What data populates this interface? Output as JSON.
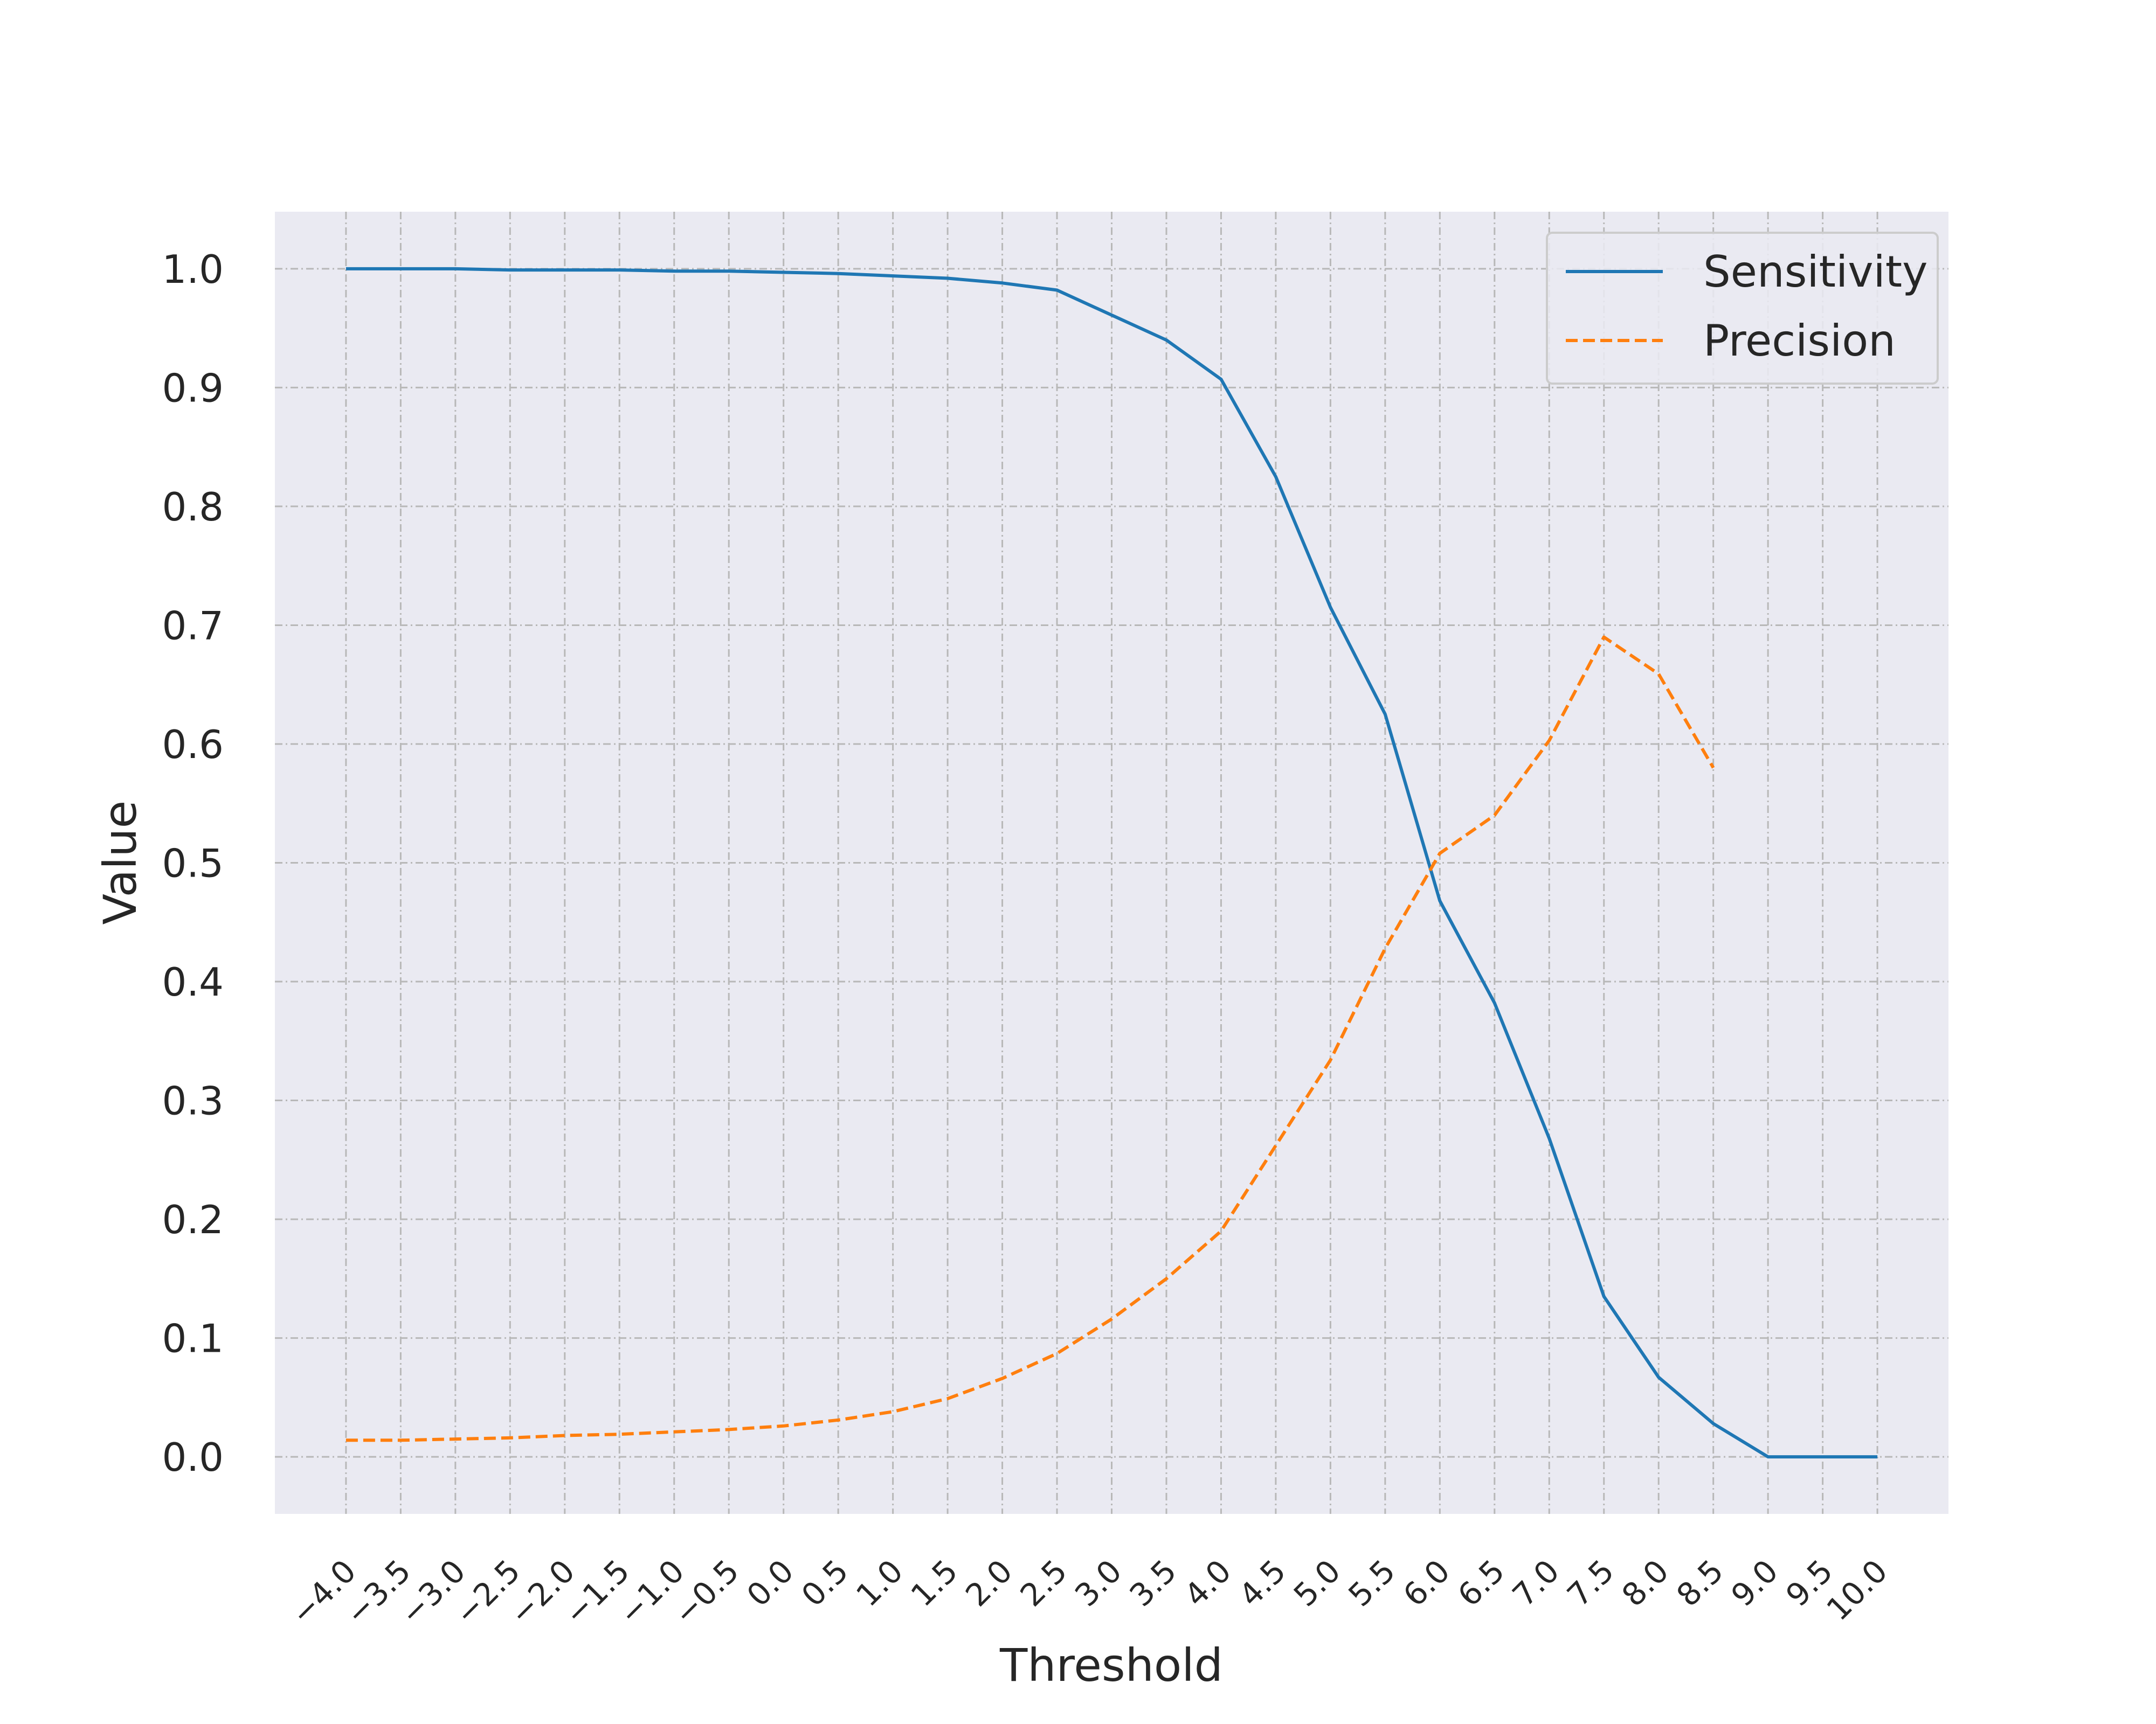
{
  "chart_data": {
    "type": "line",
    "xlabel": "Threshold",
    "ylabel": "Value",
    "xlim": [
      -4.65,
      10.65
    ],
    "ylim": [
      -0.048,
      1.048
    ],
    "x_ticks": [
      -4.0,
      -3.5,
      -3.0,
      -2.5,
      -2.0,
      -1.5,
      -1.0,
      -0.5,
      0.0,
      0.5,
      1.0,
      1.5,
      2.0,
      2.5,
      3.0,
      3.5,
      4.0,
      4.5,
      5.0,
      5.5,
      6.0,
      6.5,
      7.0,
      7.5,
      8.0,
      8.5,
      9.0,
      9.5,
      10.0
    ],
    "x_tick_labels": [
      "−4.0",
      "−3.5",
      "−3.0",
      "−2.5",
      "−2.0",
      "−1.5",
      "−1.0",
      "−0.5",
      "0.0",
      "0.5",
      "1.0",
      "1.5",
      "2.0",
      "2.5",
      "3.0",
      "3.5",
      "4.0",
      "4.5",
      "5.0",
      "5.5",
      "6.0",
      "6.5",
      "7.0",
      "7.5",
      "8.0",
      "8.5",
      "9.0",
      "9.5",
      "10.0"
    ],
    "y_ticks": [
      0.0,
      0.1,
      0.2,
      0.3,
      0.4,
      0.5,
      0.6,
      0.7,
      0.8,
      0.9,
      1.0
    ],
    "y_tick_labels": [
      "0.0",
      "0.1",
      "0.2",
      "0.3",
      "0.4",
      "0.5",
      "0.6",
      "0.7",
      "0.8",
      "0.9",
      "1.0"
    ],
    "grid": true,
    "legend_position": "top-right",
    "series": [
      {
        "name": "Sensitivity",
        "color": "#1f77b4",
        "style": "solid",
        "x": [
          -4.0,
          -3.5,
          -3.0,
          -2.5,
          -2.0,
          -1.5,
          -1.0,
          -0.5,
          0.0,
          0.5,
          1.0,
          1.5,
          2.0,
          2.5,
          3.0,
          3.5,
          4.0,
          4.5,
          5.0,
          5.5,
          6.0,
          6.5,
          7.0,
          7.5,
          8.0,
          8.5,
          9.0,
          9.5,
          10.0
        ],
        "y": [
          1.0,
          1.0,
          1.0,
          0.999,
          0.999,
          0.999,
          0.998,
          0.998,
          0.997,
          0.996,
          0.994,
          0.992,
          0.988,
          0.982,
          0.961,
          0.94,
          0.907,
          0.825,
          0.715,
          0.625,
          0.468,
          0.382,
          0.268,
          0.135,
          0.067,
          0.028,
          0.0,
          0.0,
          0.0
        ]
      },
      {
        "name": "Precision",
        "color": "#ff7f0e",
        "style": "dashed",
        "x": [
          -4.0,
          -3.5,
          -3.0,
          -2.5,
          -2.0,
          -1.5,
          -1.0,
          -0.5,
          0.0,
          0.5,
          1.0,
          1.5,
          2.0,
          2.5,
          3.0,
          3.5,
          4.0,
          4.5,
          5.0,
          5.5,
          6.0,
          6.5,
          7.0,
          7.5,
          8.0,
          8.5
        ],
        "y": [
          0.014,
          0.014,
          0.015,
          0.016,
          0.018,
          0.019,
          0.021,
          0.023,
          0.026,
          0.031,
          0.038,
          0.049,
          0.066,
          0.087,
          0.116,
          0.15,
          0.19,
          0.262,
          0.334,
          0.428,
          0.508,
          0.54,
          0.603,
          0.69,
          0.659,
          0.58
        ]
      }
    ]
  }
}
